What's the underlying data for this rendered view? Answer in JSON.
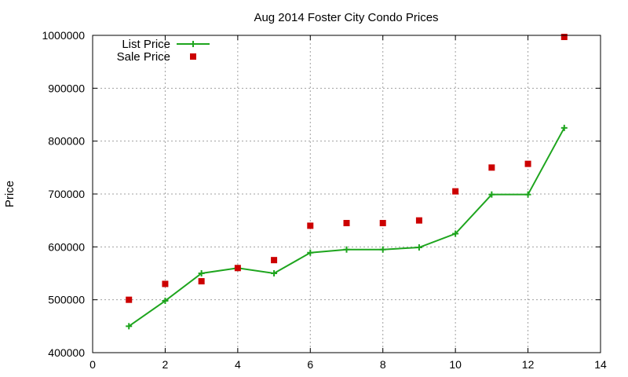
{
  "chart_data": {
    "type": "line",
    "title": "Aug 2014 Foster City Condo Prices",
    "xlabel": "",
    "ylabel": "Price",
    "xlim": [
      0,
      14
    ],
    "ylim": [
      400000,
      1000000
    ],
    "x_ticks": [
      0,
      2,
      4,
      6,
      8,
      10,
      12,
      14
    ],
    "y_ticks": [
      400000,
      500000,
      600000,
      700000,
      800000,
      900000,
      1000000
    ],
    "grid": true,
    "legend_position": "top-left",
    "series": [
      {
        "name": "List Price",
        "style": "line-with-plus-markers",
        "color": "#1ea51e",
        "x": [
          1,
          2,
          3,
          4,
          5,
          6,
          7,
          8,
          9,
          10,
          11,
          12,
          13
        ],
        "values": [
          450000,
          498000,
          550000,
          560000,
          550000,
          589000,
          595000,
          595000,
          599000,
          625000,
          699000,
          699000,
          825000
        ]
      },
      {
        "name": "Sale Price",
        "style": "square-points",
        "color": "#cc0000",
        "x": [
          1,
          2,
          3,
          4,
          5,
          6,
          7,
          8,
          9,
          10,
          11,
          12,
          13
        ],
        "values": [
          500000,
          530000,
          535000,
          560000,
          575000,
          640000,
          645000,
          645000,
          650000,
          705000,
          750000,
          757000,
          997000
        ]
      }
    ]
  }
}
